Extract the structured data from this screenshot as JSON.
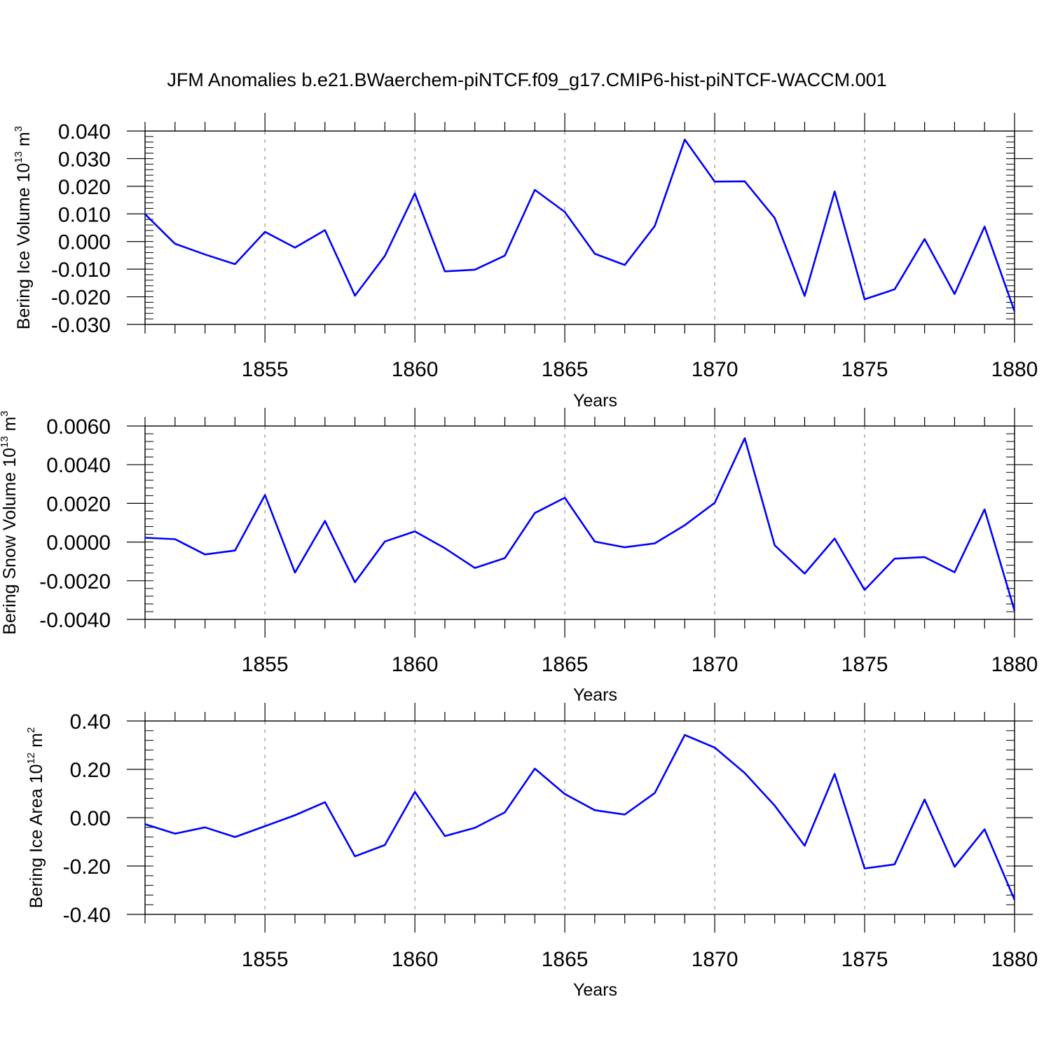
{
  "title": "JFM Anomalies b.e21.BWaerchem-piNTCF.f09_g17.CMIP6-hist-piNTCF-WACCM.001",
  "line_color": "#0000ff",
  "grid_color": "#999999",
  "chart_data": [
    {
      "type": "line",
      "ylabel": {
        "text": "Bering Ice Volume 10",
        "exp": "13",
        "unit": " m",
        "unit_exp": "3"
      },
      "xlabel": "Years",
      "xlim": [
        1851,
        1880
      ],
      "ylim": [
        -0.03,
        0.04
      ],
      "xticks": [
        1855,
        1860,
        1865,
        1870,
        1875,
        1880
      ],
      "xtick_labels": [
        "1855",
        "1860",
        "1865",
        "1870",
        "1875",
        "1880"
      ],
      "yticks": [
        0.04,
        0.03,
        0.02,
        0.01,
        0.0,
        -0.01,
        -0.02,
        -0.03
      ],
      "ytick_labels": [
        "0.040",
        "0.030",
        "0.020",
        "0.010",
        "0.000",
        "-0.010",
        "-0.020",
        "-0.030"
      ],
      "y_minor_step": 0.002,
      "grid": "vertical-dashed",
      "x": [
        1851,
        1852,
        1853,
        1854,
        1855,
        1856,
        1857,
        1858,
        1859,
        1860,
        1861,
        1862,
        1863,
        1864,
        1865,
        1866,
        1867,
        1868,
        1869,
        1870,
        1871,
        1872,
        1873,
        1874,
        1875,
        1876,
        1877,
        1878,
        1879,
        1880
      ],
      "values": [
        0.0099,
        -0.0008,
        -0.0047,
        -0.0082,
        0.0035,
        -0.0022,
        0.0041,
        -0.0196,
        -0.0052,
        0.0174,
        -0.0108,
        -0.0102,
        -0.0051,
        0.0187,
        0.0107,
        -0.0044,
        -0.0085,
        0.0056,
        0.0369,
        0.0217,
        0.0218,
        0.0085,
        -0.0197,
        0.0181,
        -0.0209,
        -0.0173,
        0.0009,
        -0.019,
        0.0054,
        -0.0253
      ]
    },
    {
      "type": "line",
      "ylabel": {
        "text": "Bering Snow Volume 10",
        "exp": "13",
        "unit": " m",
        "unit_exp": "3"
      },
      "xlabel": "Years",
      "xlim": [
        1851,
        1880
      ],
      "ylim": [
        -0.004,
        0.006
      ],
      "xticks": [
        1855,
        1860,
        1865,
        1870,
        1875,
        1880
      ],
      "xtick_labels": [
        "1855",
        "1860",
        "1865",
        "1870",
        "1875",
        "1880"
      ],
      "yticks": [
        0.006,
        0.004,
        0.002,
        0.0,
        -0.002,
        -0.004
      ],
      "ytick_labels": [
        "0.0060",
        "0.0040",
        "0.0020",
        "0.0000",
        "-0.0020",
        "-0.0040"
      ],
      "y_minor_step": 0.0004,
      "grid": "vertical-dashed",
      "x": [
        1851,
        1852,
        1853,
        1854,
        1855,
        1856,
        1857,
        1858,
        1859,
        1860,
        1861,
        1862,
        1863,
        1864,
        1865,
        1866,
        1867,
        1868,
        1869,
        1870,
        1871,
        1872,
        1873,
        1874,
        1875,
        1876,
        1877,
        1878,
        1879,
        1880
      ],
      "values": [
        0.00022,
        0.00015,
        -0.00064,
        -0.00044,
        0.00243,
        -0.00158,
        0.00109,
        -0.00208,
        3e-05,
        0.00055,
        -0.00032,
        -0.00134,
        -0.00083,
        0.0015,
        0.00229,
        2e-05,
        -0.00027,
        -7e-05,
        0.00087,
        0.00203,
        0.00537,
        -0.00017,
        -0.00163,
        0.00018,
        -0.00248,
        -0.00086,
        -0.00078,
        -0.00156,
        0.00169,
        -0.00355
      ]
    },
    {
      "type": "line",
      "ylabel": {
        "text": "Bering Ice Area 10",
        "exp": "12",
        "unit": " m",
        "unit_exp": "2"
      },
      "xlabel": "Years",
      "xlim": [
        1851,
        1880
      ],
      "ylim": [
        -0.4,
        0.4
      ],
      "xticks": [
        1855,
        1860,
        1865,
        1870,
        1875,
        1880
      ],
      "xtick_labels": [
        "1855",
        "1860",
        "1865",
        "1870",
        "1875",
        "1880"
      ],
      "yticks": [
        0.4,
        0.2,
        0.0,
        -0.2,
        -0.4
      ],
      "ytick_labels": [
        "0.40",
        "0.20",
        "0.00",
        "-0.20",
        "-0.40"
      ],
      "y_minor_step": 0.04,
      "grid": "vertical-dashed",
      "x": [
        1851,
        1852,
        1853,
        1854,
        1855,
        1856,
        1857,
        1858,
        1859,
        1860,
        1861,
        1862,
        1863,
        1864,
        1865,
        1866,
        1867,
        1868,
        1869,
        1870,
        1871,
        1872,
        1873,
        1874,
        1875,
        1876,
        1877,
        1878,
        1879,
        1880
      ],
      "values": [
        -0.027,
        -0.066,
        -0.04,
        -0.08,
        -0.035,
        0.01,
        0.064,
        -0.16,
        -0.113,
        0.107,
        -0.076,
        -0.042,
        0.022,
        0.203,
        0.098,
        0.031,
        0.013,
        0.102,
        0.342,
        0.29,
        0.185,
        0.05,
        -0.116,
        0.181,
        -0.21,
        -0.193,
        0.075,
        -0.203,
        -0.048,
        -0.34
      ]
    }
  ]
}
